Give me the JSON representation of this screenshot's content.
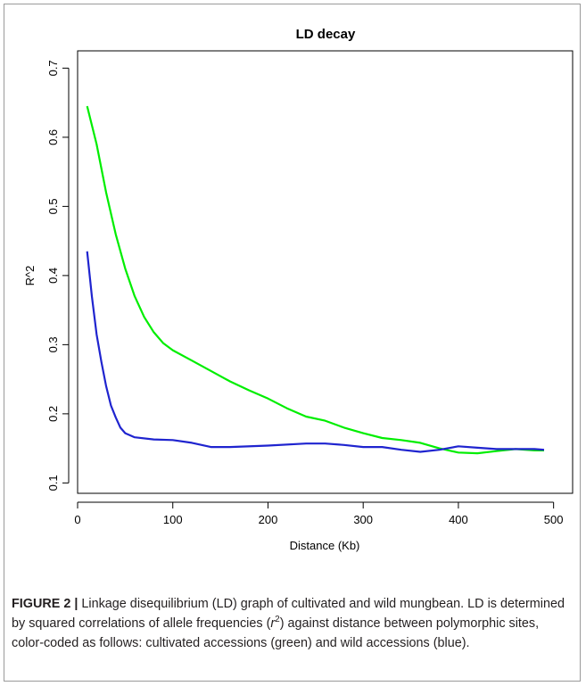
{
  "chart_data": {
    "type": "line",
    "title": "LD decay",
    "xlabel": "Distance (Kb)",
    "ylabel": "R^2",
    "xlim": [
      0,
      520
    ],
    "ylim": [
      0.085,
      0.725
    ],
    "x_ticks": [
      0,
      100,
      200,
      300,
      400,
      500
    ],
    "y_ticks": [
      0.1,
      0.2,
      0.3,
      0.4,
      0.5,
      0.6,
      0.7
    ],
    "grid": false,
    "series": [
      {
        "color": "#00ee00",
        "points": [
          [
            10,
            0.645
          ],
          [
            20,
            0.59
          ],
          [
            30,
            0.52
          ],
          [
            40,
            0.46
          ],
          [
            50,
            0.41
          ],
          [
            60,
            0.37
          ],
          [
            70,
            0.34
          ],
          [
            80,
            0.318
          ],
          [
            90,
            0.302
          ],
          [
            100,
            0.292
          ],
          [
            120,
            0.277
          ],
          [
            140,
            0.262
          ],
          [
            160,
            0.247
          ],
          [
            180,
            0.234
          ],
          [
            200,
            0.222
          ],
          [
            220,
            0.208
          ],
          [
            240,
            0.196
          ],
          [
            260,
            0.19
          ],
          [
            280,
            0.18
          ],
          [
            300,
            0.172
          ],
          [
            320,
            0.165
          ],
          [
            340,
            0.162
          ],
          [
            360,
            0.158
          ],
          [
            380,
            0.15
          ],
          [
            400,
            0.144
          ],
          [
            420,
            0.143
          ],
          [
            440,
            0.146
          ],
          [
            460,
            0.149
          ],
          [
            480,
            0.147
          ],
          [
            490,
            0.147
          ]
        ]
      },
      {
        "color": "#1f24cf",
        "points": [
          [
            10,
            0.435
          ],
          [
            15,
            0.37
          ],
          [
            20,
            0.315
          ],
          [
            25,
            0.275
          ],
          [
            30,
            0.24
          ],
          [
            35,
            0.212
          ],
          [
            40,
            0.195
          ],
          [
            45,
            0.18
          ],
          [
            50,
            0.172
          ],
          [
            60,
            0.166
          ],
          [
            80,
            0.163
          ],
          [
            100,
            0.162
          ],
          [
            120,
            0.158
          ],
          [
            140,
            0.152
          ],
          [
            160,
            0.152
          ],
          [
            200,
            0.154
          ],
          [
            240,
            0.157
          ],
          [
            260,
            0.157
          ],
          [
            280,
            0.155
          ],
          [
            300,
            0.152
          ],
          [
            320,
            0.152
          ],
          [
            340,
            0.148
          ],
          [
            360,
            0.145
          ],
          [
            380,
            0.148
          ],
          [
            400,
            0.153
          ],
          [
            420,
            0.151
          ],
          [
            440,
            0.149
          ],
          [
            460,
            0.149
          ],
          [
            480,
            0.149
          ],
          [
            490,
            0.148
          ]
        ]
      }
    ]
  },
  "caption": {
    "label": "FIGURE 2 |",
    "text_before_sup": " Linkage disequilibrium (LD) graph of cultivated and wild mungbean. LD is determined by squared correlations of allele frequencies (",
    "r_symbol": "r",
    "sup": "2",
    "text_after_sup": ") against distance between polymorphic sites, color-coded as follows: cultivated accessions (green) and wild accessions (blue)."
  }
}
